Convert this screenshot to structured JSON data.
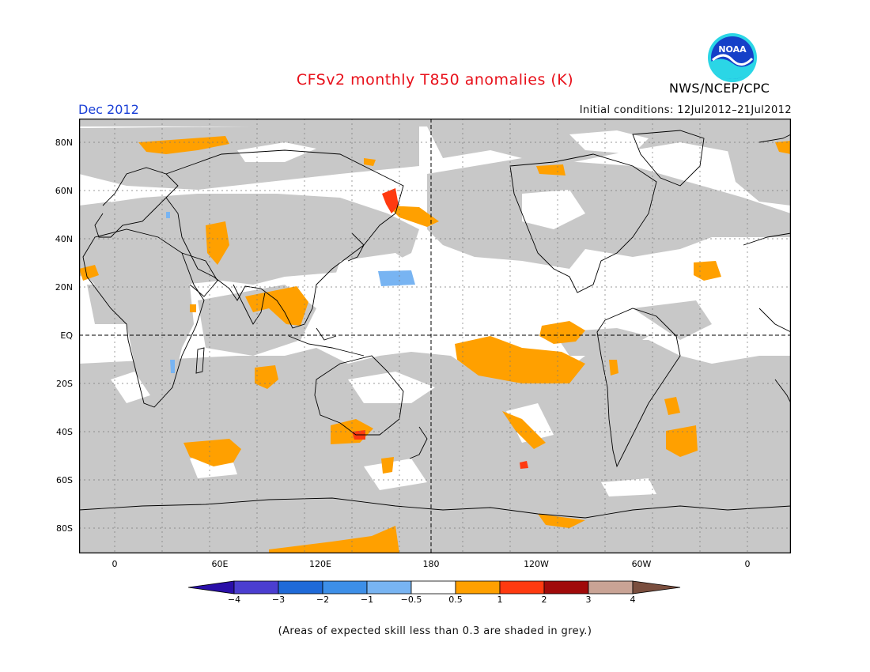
{
  "header": {
    "title": "CFSv2 monthly T850 anomalies (K)",
    "agency": "NWS/NCEP/CPC",
    "logo_text": "NOAA",
    "month": "Dec 2012",
    "initial_conditions": "Initial conditions: 12Jul2012–21Jul2012"
  },
  "map": {
    "projection": "equirectangular",
    "center_longitude": 180,
    "lat_labels": [
      "80N",
      "60N",
      "40N",
      "20N",
      "EQ",
      "20S",
      "40S",
      "60S",
      "80S"
    ],
    "lon_labels": [
      "0",
      "60E",
      "120E",
      "180",
      "120W",
      "60W",
      "0"
    ],
    "grey_meaning": "expected skill < 0.3",
    "colors": {
      "skill_grey": "#c8c8c8",
      "orange_0_5_to_1": "#ffa000",
      "red_1_to_2": "#ff3a10",
      "blue_neg_0_5_to_neg_1": "#73b2f5"
    }
  },
  "colorbar": {
    "labels": [
      "−4",
      "−3",
      "−2",
      "−1",
      "−0.5",
      "0.5",
      "1",
      "2",
      "3",
      "4"
    ],
    "colors": [
      "#2a0fa8",
      "#4b3ed0",
      "#1f6ad8",
      "#3d8fe8",
      "#78b4f2",
      "#ffffff",
      "#ffa000",
      "#ff3a10",
      "#a00a0a",
      "#c9a395",
      "#7a4e3e"
    ]
  },
  "footer": {
    "skill_note": "(Areas of expected skill less than 0.3 are shaded in grey.)"
  }
}
